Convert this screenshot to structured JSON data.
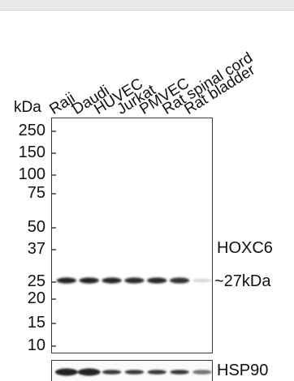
{
  "figure": {
    "unit_label": "kDa",
    "lanes": [
      "Raji",
      "Daudi",
      "HUVEC",
      "Jurkat",
      "PMVEC",
      "Rat spinal cord",
      "Rat bladder"
    ],
    "markers": [
      "250",
      "150",
      "100",
      "75",
      "50",
      "37",
      "25",
      "20",
      "15",
      "10"
    ],
    "target_label": "HOXC6",
    "band_size_label": "~27kDa",
    "loading_control_label": "HSP90",
    "band_intensity": [
      0.95,
      0.95,
      0.92,
      0.9,
      0.92,
      0.88,
      0.18
    ],
    "loading_intensity": [
      0.95,
      0.95,
      0.85,
      0.85,
      0.85,
      0.85,
      0.6
    ]
  }
}
